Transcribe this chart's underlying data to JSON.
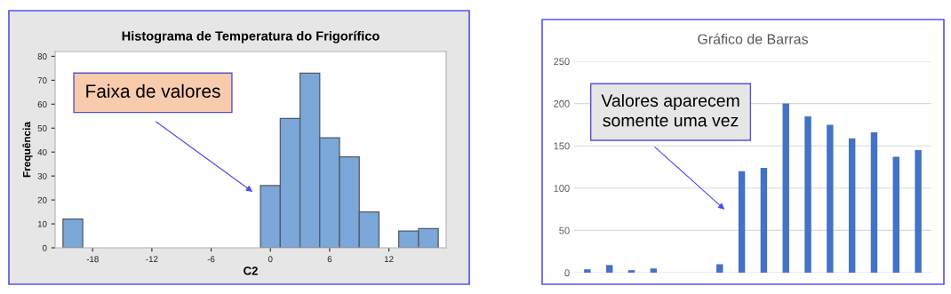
{
  "chart_data": [
    {
      "type": "histogram",
      "title": "Histograma de Temperatura do Frigorífico",
      "xlabel": "C2",
      "ylabel": "Frequência",
      "bins": [
        -21,
        -19,
        -17,
        -15,
        -13,
        -11,
        -9,
        -7,
        -5,
        -3,
        -1,
        1,
        3,
        5,
        7,
        9,
        11,
        13,
        15,
        17
      ],
      "values": [
        12,
        0,
        0,
        0,
        0,
        0,
        0,
        0,
        0,
        0,
        26,
        54,
        73,
        46,
        38,
        15,
        0,
        7,
        8
      ],
      "color": "#7ba7d9",
      "xlim": [
        -21.8,
        17.8
      ],
      "ylim": [
        0,
        82
      ],
      "xticks": [
        -18,
        -12,
        -6,
        0,
        6,
        12
      ],
      "yticks": [
        0,
        10,
        20,
        30,
        40,
        50,
        60,
        70,
        80
      ],
      "grid": false,
      "annotations": [
        "Faixa de valores"
      ]
    },
    {
      "type": "bar",
      "title": "Gráfico de Barras",
      "categories": [
        null,
        null,
        null,
        null,
        null,
        null,
        null,
        null,
        null,
        null,
        null,
        null,
        null,
        null,
        null,
        null
      ],
      "values": [
        4,
        9,
        3,
        5,
        null,
        null,
        10,
        120,
        124,
        200,
        185,
        175,
        159,
        166,
        137,
        145
      ],
      "color": "#4472c4",
      "ylim": [
        0,
        250
      ],
      "yticks": [
        0,
        50,
        100,
        150,
        200,
        250
      ],
      "grid": "y",
      "tick_labels": "y",
      "annotations": [
        "Valores aparecem\nsomente uma vez"
      ]
    }
  ]
}
